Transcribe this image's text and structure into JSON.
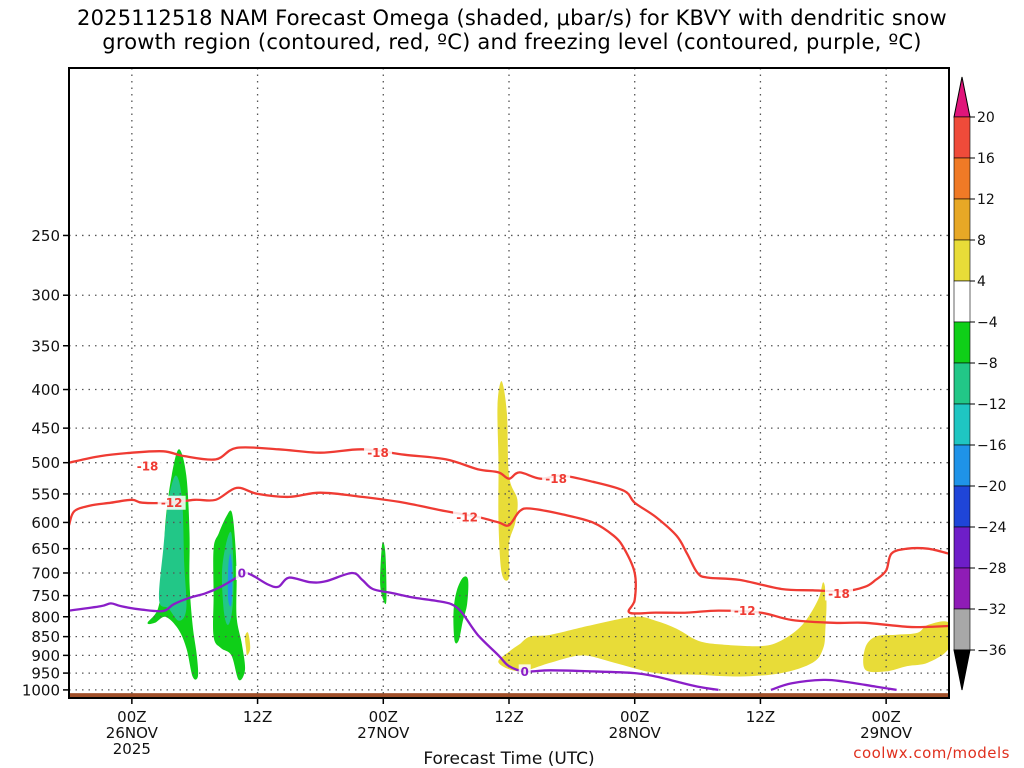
{
  "chart_data": {
    "type": "heatmap",
    "title_line1": "2025112518 NAM Forecast Omega (shaded, μbar/s) for KBVY with dendritic snow",
    "title_line2": "growth region (contoured, red, ºC) and freezing level (contoured, purple, ºC)",
    "xlabel": "Forecast Time (UTC)",
    "ylabel": "",
    "x_unit": "forecast hour",
    "xlim": [
      -6,
      78
    ],
    "y_unit": "hPa",
    "ylim": [
      1025,
      150
    ],
    "y_ticks": [
      250,
      300,
      350,
      400,
      450,
      500,
      550,
      600,
      650,
      700,
      750,
      800,
      850,
      900,
      950,
      1000
    ],
    "x_ticks": [
      {
        "hour": 0,
        "label": "00Z",
        "sub1": "26NOV",
        "sub2": "2025"
      },
      {
        "hour": 12,
        "label": "12Z",
        "sub1": "",
        "sub2": ""
      },
      {
        "hour": 24,
        "label": "00Z",
        "sub1": "27NOV",
        "sub2": ""
      },
      {
        "hour": 36,
        "label": "12Z",
        "sub1": "",
        "sub2": ""
      },
      {
        "hour": 48,
        "label": "00Z",
        "sub1": "28NOV",
        "sub2": ""
      },
      {
        "hour": 60,
        "label": "12Z",
        "sub1": "",
        "sub2": ""
      },
      {
        "hour": 72,
        "label": "00Z",
        "sub1": "29NOV",
        "sub2": ""
      }
    ],
    "grid": true,
    "colorbar": {
      "levels": [
        20,
        16,
        12,
        8,
        4,
        -4,
        -8,
        -12,
        -16,
        -20,
        -24,
        -28,
        -32,
        -36
      ],
      "colors": [
        "#ec2d5c",
        "#ef4b3a",
        "#f07a26",
        "#e7a826",
        "#e8dc38",
        "#ffffff",
        "#0fcf18",
        "#22c787",
        "#1fc6c2",
        "#1f93e8",
        "#1f45d8",
        "#6e1ec8",
        "#8f1cb6",
        "#a8a8a8",
        "#000000"
      ],
      "overflow_color_top": "#e0157a",
      "overflow_color_bottom": "#000000"
    },
    "omega_regions": [
      {
        "name": "rising-column-0230z",
        "color": "#0fcf18",
        "points": [
          [
            1.5,
            815
          ],
          [
            2.5,
            780
          ],
          [
            3.0,
            700
          ],
          [
            3.2,
            600
          ],
          [
            3.8,
            520
          ],
          [
            4.5,
            480
          ],
          [
            5.2,
            520
          ],
          [
            5.5,
            620
          ],
          [
            5.5,
            720
          ],
          [
            5.8,
            820
          ],
          [
            6.2,
            900
          ],
          [
            6.3,
            960
          ],
          [
            5.8,
            960
          ],
          [
            5.2,
            880
          ],
          [
            4.4,
            830
          ],
          [
            3.2,
            800
          ],
          [
            2.2,
            815
          ]
        ]
      },
      {
        "name": "rising-column-0230z-core",
        "color": "#22c787",
        "points": [
          [
            2.6,
            760
          ],
          [
            3.0,
            650
          ],
          [
            3.5,
            560
          ],
          [
            4.2,
            520
          ],
          [
            4.8,
            560
          ],
          [
            5.0,
            680
          ],
          [
            5.2,
            780
          ],
          [
            4.5,
            810
          ],
          [
            3.5,
            780
          ]
        ]
      },
      {
        "name": "rising-column-0800z",
        "color": "#0fcf18",
        "points": [
          [
            7.8,
            650
          ],
          [
            8.3,
            620
          ],
          [
            9.0,
            590
          ],
          [
            9.5,
            580
          ],
          [
            9.8,
            620
          ],
          [
            10.0,
            700
          ],
          [
            10.0,
            800
          ],
          [
            10.5,
            870
          ],
          [
            10.8,
            940
          ],
          [
            10.2,
            970
          ],
          [
            9.5,
            900
          ],
          [
            8.5,
            880
          ],
          [
            7.8,
            850
          ],
          [
            7.8,
            750
          ]
        ]
      },
      {
        "name": "rising-column-0800z-core",
        "color": "#22c787",
        "points": [
          [
            8.6,
            700
          ],
          [
            9.0,
            640
          ],
          [
            9.5,
            620
          ],
          [
            9.7,
            700
          ],
          [
            9.6,
            780
          ],
          [
            9.2,
            820
          ],
          [
            8.8,
            790
          ]
        ]
      },
      {
        "name": "rising-column-0800z-peak",
        "color": "#1f93e8",
        "points": [
          [
            9.2,
            690
          ],
          [
            9.4,
            660
          ],
          [
            9.6,
            700
          ],
          [
            9.5,
            770
          ],
          [
            9.2,
            760
          ]
        ]
      },
      {
        "name": "rising-streak-0000z",
        "color": "#0fcf18",
        "points": [
          [
            23.7,
            720
          ],
          [
            23.9,
            640
          ],
          [
            24.2,
            660
          ],
          [
            24.3,
            760
          ],
          [
            24.0,
            760
          ]
        ]
      },
      {
        "name": "rising-blob-0730z",
        "color": "#0fcf18",
        "points": [
          [
            30.7,
            790
          ],
          [
            31.0,
            740
          ],
          [
            31.6,
            710
          ],
          [
            32.1,
            715
          ],
          [
            32.0,
            770
          ],
          [
            31.6,
            810
          ],
          [
            31.2,
            860
          ],
          [
            30.8,
            860
          ]
        ]
      },
      {
        "name": "sinking-column-1200z",
        "color": "#e8dc38",
        "points": [
          [
            34.9,
            420
          ],
          [
            35.3,
            390
          ],
          [
            35.8,
            430
          ],
          [
            36.0,
            520
          ],
          [
            36.8,
            560
          ],
          [
            36.6,
            600
          ],
          [
            36.0,
            640
          ],
          [
            36.0,
            710
          ],
          [
            35.3,
            700
          ],
          [
            35.0,
            600
          ],
          [
            35.0,
            500
          ]
        ]
      },
      {
        "name": "sinking-low-level-band",
        "color": "#e8dc38",
        "points": [
          [
            35.0,
            920
          ],
          [
            36.0,
            890
          ],
          [
            37.0,
            870
          ],
          [
            38.0,
            850
          ],
          [
            40.0,
            845
          ],
          [
            44.0,
            820
          ],
          [
            48.0,
            800
          ],
          [
            50.0,
            810
          ],
          [
            52.0,
            830
          ],
          [
            54.0,
            860
          ],
          [
            56.0,
            870
          ],
          [
            60.0,
            875
          ],
          [
            62.0,
            860
          ],
          [
            64.0,
            820
          ],
          [
            65.5,
            760
          ],
          [
            66.0,
            720
          ],
          [
            66.3,
            760
          ],
          [
            66.2,
            830
          ],
          [
            66.0,
            880
          ],
          [
            65.0,
            920
          ],
          [
            62.0,
            950
          ],
          [
            58.0,
            960
          ],
          [
            54.0,
            955
          ],
          [
            50.0,
            950
          ],
          [
            46.0,
            920
          ],
          [
            43.0,
            900
          ],
          [
            40.0,
            920
          ],
          [
            37.0,
            945
          ]
        ]
      },
      {
        "name": "sinking-low-level-east",
        "color": "#e8dc38",
        "points": [
          [
            70.0,
            880
          ],
          [
            71.0,
            850
          ],
          [
            73.0,
            845
          ],
          [
            75.0,
            840
          ],
          [
            76.0,
            820
          ],
          [
            78.0,
            815
          ],
          [
            78.0,
            880
          ],
          [
            76.0,
            920
          ],
          [
            74.0,
            930
          ],
          [
            72.0,
            945
          ],
          [
            70.0,
            940
          ]
        ]
      },
      {
        "name": "sinking-sliver-1030z",
        "color": "#e8dc38",
        "points": [
          [
            10.8,
            850
          ],
          [
            11.1,
            840
          ],
          [
            11.3,
            880
          ],
          [
            11.0,
            900
          ],
          [
            10.9,
            880
          ]
        ]
      }
    ],
    "dgz_isotherms": [
      {
        "label": "-18",
        "label_at": [
          1.5,
          505
        ],
        "label2": "-18",
        "label2_at": [
          23.5,
          485
        ],
        "label3": "-18",
        "label3_at": [
          40.5,
          525
        ],
        "label4": "-18",
        "label4_at": [
          67.5,
          745
        ],
        "points": [
          [
            -6,
            500
          ],
          [
            -3,
            490
          ],
          [
            0,
            485
          ],
          [
            3,
            483
          ],
          [
            5,
            490
          ],
          [
            8,
            495
          ],
          [
            10,
            478
          ],
          [
            14,
            480
          ],
          [
            18,
            485
          ],
          [
            22,
            480
          ],
          [
            26,
            488
          ],
          [
            30,
            495
          ],
          [
            33,
            510
          ],
          [
            35,
            515
          ],
          [
            36,
            525
          ],
          [
            37,
            515
          ],
          [
            39,
            525
          ],
          [
            41,
            520
          ],
          [
            44,
            530
          ],
          [
            47,
            545
          ],
          [
            48,
            565
          ],
          [
            50,
            590
          ],
          [
            52,
            625
          ],
          [
            53,
            660
          ],
          [
            54,
            700
          ],
          [
            55,
            710
          ],
          [
            58,
            715
          ],
          [
            62,
            735
          ],
          [
            65,
            738
          ],
          [
            68,
            740
          ],
          [
            70,
            730
          ],
          [
            71,
            715
          ],
          [
            72,
            695
          ],
          [
            72.5,
            660
          ],
          [
            74,
            650
          ],
          [
            76,
            650
          ],
          [
            78,
            660
          ]
        ]
      },
      {
        "label": "-12",
        "label_at": [
          3.8,
          565
        ],
        "label2": "-12",
        "label2_at": [
          32,
          590
        ],
        "label3": "-12",
        "label3_at": [
          58.5,
          785
        ],
        "points": [
          [
            -6,
            605
          ],
          [
            -5.5,
            580
          ],
          [
            -4,
            570
          ],
          [
            -2,
            565
          ],
          [
            0,
            560
          ],
          [
            1,
            565
          ],
          [
            3.5,
            565
          ],
          [
            6,
            560
          ],
          [
            8,
            560
          ],
          [
            10,
            540
          ],
          [
            12,
            550
          ],
          [
            15,
            555
          ],
          [
            18,
            548
          ],
          [
            22,
            555
          ],
          [
            26,
            565
          ],
          [
            30,
            580
          ],
          [
            33,
            590
          ],
          [
            35,
            600
          ],
          [
            36,
            605
          ],
          [
            37,
            580
          ],
          [
            38,
            575
          ],
          [
            41,
            585
          ],
          [
            44,
            600
          ],
          [
            46,
            625
          ],
          [
            47,
            650
          ],
          [
            48,
            700
          ],
          [
            48,
            760
          ],
          [
            47.5,
            790
          ],
          [
            50,
            790
          ],
          [
            53,
            790
          ],
          [
            56,
            785
          ],
          [
            60,
            790
          ],
          [
            63,
            808
          ],
          [
            67,
            815
          ],
          [
            70,
            815
          ],
          [
            74,
            825
          ],
          [
            76,
            825
          ],
          [
            78,
            823
          ]
        ]
      }
    ],
    "freezing_level": {
      "label": "0",
      "label_at": [
        10.5,
        700
      ],
      "label2": "0",
      "label2_at": [
        37.5,
        945
      ],
      "points": [
        [
          -6,
          785
        ],
        [
          -3,
          775
        ],
        [
          -2,
          768
        ],
        [
          -1,
          775
        ],
        [
          1,
          783
        ],
        [
          3,
          786
        ],
        [
          4,
          770
        ],
        [
          5.5,
          755
        ],
        [
          7,
          745
        ],
        [
          8.5,
          730
        ],
        [
          10,
          710
        ],
        [
          10.7,
          700
        ],
        [
          11.5,
          705
        ],
        [
          13,
          725
        ],
        [
          14,
          730
        ],
        [
          15,
          710
        ],
        [
          17,
          720
        ],
        [
          18.5,
          718
        ],
        [
          21,
          700
        ],
        [
          22,
          715
        ],
        [
          23,
          735
        ],
        [
          25,
          745
        ],
        [
          27,
          755
        ],
        [
          29,
          762
        ],
        [
          30.5,
          770
        ],
        [
          31.5,
          790
        ],
        [
          33,
          845
        ],
        [
          35,
          900
        ],
        [
          36,
          930
        ],
        [
          37.5,
          945
        ],
        [
          40,
          942
        ],
        [
          44,
          945
        ],
        [
          48,
          950
        ],
        [
          50,
          960
        ],
        [
          52,
          975
        ],
        [
          54,
          990
        ],
        [
          56,
          1000
        ]
      ],
      "segment2": [
        [
          61,
          1000
        ],
        [
          63,
          980
        ],
        [
          66,
          970
        ],
        [
          68,
          975
        ],
        [
          71,
          990
        ],
        [
          73,
          1000
        ]
      ]
    },
    "terrain": {
      "color": "#a04f28",
      "surface_hpa": 1010
    }
  },
  "credit": "coolwx.com/models"
}
